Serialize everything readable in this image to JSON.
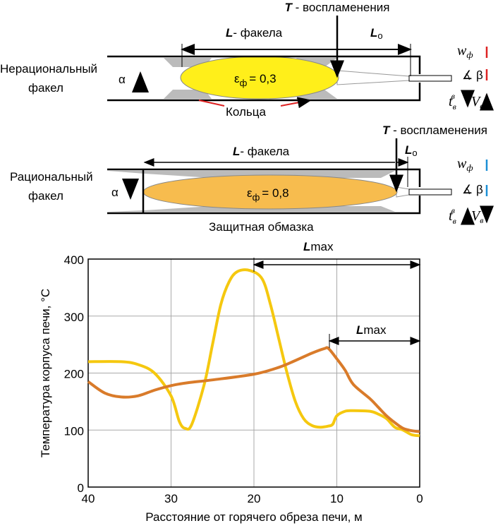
{
  "diagram_top": {
    "label": [
      "Нерациональный",
      "факел"
    ],
    "ignition": {
      "symbol": "T",
      "text": "- воспламенения"
    },
    "flame_length": {
      "symbol": "L",
      "text": "- факела"
    },
    "l0": {
      "symbol": "L",
      "sub": "o"
    },
    "alpha": "α",
    "emissivity": {
      "symbol": "ε",
      "sub": "ф",
      "text": "= 0,3"
    },
    "rings": "Кольца",
    "params": {
      "w": "w",
      "w_sub": "ф",
      "beta": "β",
      "t": "t",
      "t_sub": "в",
      "t_sup": "в",
      "v": "V",
      "v_sub": "в"
    }
  },
  "diagram_bottom": {
    "label": [
      "Рациональный",
      "факел"
    ],
    "ignition": {
      "symbol": "T",
      "text": "- воспламенения"
    },
    "flame_length": {
      "symbol": "L",
      "text": "- факела"
    },
    "l0": {
      "symbol": "L",
      "sub": "o"
    },
    "alpha": "α",
    "emissivity": {
      "symbol": "ε",
      "sub": "ф",
      "text": "= 0,8"
    },
    "coating": "Защитная обмазка",
    "params": {
      "w": "w",
      "w_sub": "ф",
      "beta": "β",
      "t": "t",
      "t_sub": "в",
      "t_sup": "в",
      "v": "V",
      "v_sub": "в"
    }
  },
  "chart_data": {
    "type": "line",
    "xlabel": "Расстояние от горячего обреза печи, м",
    "ylabel": "Температура корпуса печи, °С",
    "xlim": [
      40,
      0
    ],
    "xticks": [
      40,
      30,
      20,
      10,
      0
    ],
    "ylim": [
      0,
      400
    ],
    "yticks": [
      0,
      100,
      200,
      300,
      400
    ],
    "grid": true,
    "annotations": [
      {
        "symbol": "L",
        "sub": "max"
      },
      {
        "symbol": "L",
        "sub": "max"
      }
    ],
    "series": [
      {
        "name": "Нерациональный факел",
        "color": "#f5c80f",
        "x": [
          40,
          36,
          34,
          32,
          30,
          29,
          28.3,
          27.5,
          26,
          25,
          24,
          23,
          22,
          20.5,
          19,
          18,
          17,
          16,
          15,
          14,
          13,
          12,
          11,
          10.5,
          10,
          9,
          8,
          6,
          5,
          4,
          3,
          2,
          1,
          0
        ],
        "values": [
          220,
          220,
          215,
          200,
          160,
          115,
          103,
          110,
          180,
          250,
          320,
          360,
          378,
          380,
          365,
          320,
          260,
          200,
          150,
          120,
          108,
          105,
          107,
          110,
          125,
          133,
          134,
          133,
          128,
          120,
          105,
          100,
          92,
          90
        ]
      },
      {
        "name": "Рациональный факел",
        "color": "#d97b2a",
        "x": [
          40,
          38,
          36,
          34,
          32,
          30,
          28,
          25,
          20,
          17,
          15,
          13,
          11.5,
          11,
          10,
          9,
          8,
          6,
          5,
          4,
          3,
          2,
          1,
          0
        ],
        "values": [
          185,
          165,
          158,
          160,
          170,
          178,
          183,
          188,
          198,
          210,
          222,
          235,
          243,
          243,
          225,
          205,
          180,
          155,
          140,
          125,
          113,
          103,
          99,
          97
        ]
      }
    ]
  }
}
